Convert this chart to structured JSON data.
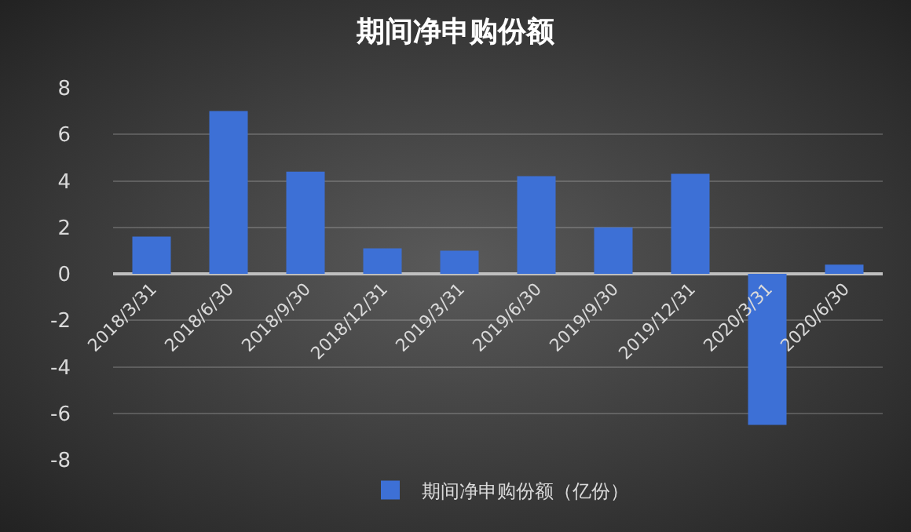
{
  "chart_data": {
    "type": "bar",
    "title": "期间净申购份额",
    "categories": [
      "2018/3/31",
      "2018/6/30",
      "2018/9/30",
      "2018/12/31",
      "2019/3/31",
      "2019/6/30",
      "2019/9/30",
      "2019/12/31",
      "2020/3/31",
      "2020/6/30"
    ],
    "series": [
      {
        "name": "期间净申购份额（亿份）",
        "color": "#3d70d6",
        "values": [
          1.6,
          7.0,
          4.4,
          1.1,
          1.0,
          4.2,
          2.0,
          4.3,
          -6.5,
          0.4
        ]
      }
    ],
    "ylim": [
      -8,
      8
    ],
    "yticks": [
      -8,
      -6,
      -4,
      -2,
      0,
      2,
      4,
      6,
      8
    ],
    "grid": "y",
    "legend": "bottom"
  }
}
